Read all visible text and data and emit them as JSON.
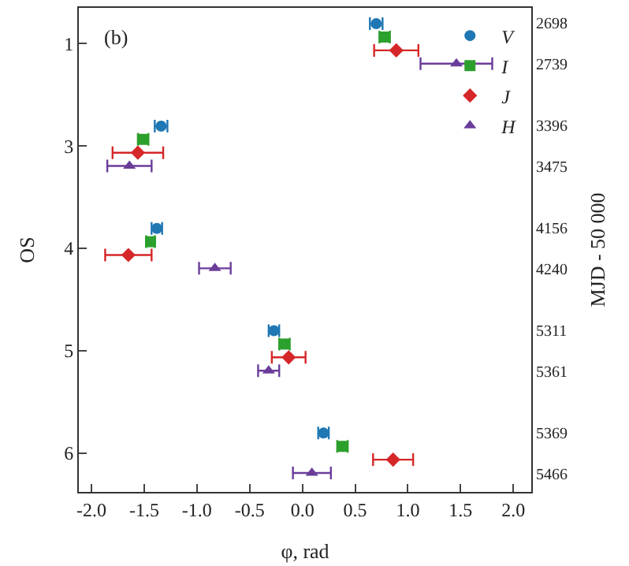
{
  "chart_data": {
    "type": "scatter",
    "orientation": "horizontal",
    "xlabel": "φ, rad",
    "ylabel": "OS",
    "y2label": "MJD - 50 000",
    "annotations": [
      "(b)"
    ],
    "xlim": [
      -2.12,
      2.17
    ],
    "xticks": [
      {
        "value": -2.0,
        "label": "-2.0"
      },
      {
        "value": -1.5,
        "label": "-1.5"
      },
      {
        "value": -1.0,
        "label": "-1.0"
      },
      {
        "value": -0.5,
        "label": "-0.5"
      },
      {
        "value": 0.0,
        "label": "0.0"
      },
      {
        "value": 0.5,
        "label": "0.5"
      },
      {
        "value": 1.0,
        "label": "1.0"
      },
      {
        "value": 1.5,
        "label": "1.5"
      },
      {
        "value": 2.0,
        "label": "2.0"
      }
    ],
    "categories": [
      "1",
      "3",
      "4",
      "5",
      "6"
    ],
    "y2_categories": [
      "2698\n2739",
      "3396\n3475",
      "4156\n4240",
      "5311\n5361",
      "5369\n5466"
    ],
    "legend": "top right",
    "series": [
      {
        "name": "V",
        "color": "#1f77b4",
        "marker": "circle",
        "values": [
          0.7,
          -1.34,
          -1.38,
          -0.27,
          0.2
        ],
        "errors": [
          0.06,
          0.06,
          0.05,
          0.05,
          0.05
        ]
      },
      {
        "name": "I",
        "color": "#2ca02c",
        "marker": "square",
        "values": [
          0.78,
          -1.51,
          -1.44,
          -0.17,
          0.38
        ],
        "errors": [
          0.05,
          0.05,
          0.04,
          0.05,
          0.05
        ]
      },
      {
        "name": "J",
        "color": "#d62728",
        "marker": "diamond",
        "values": [
          0.89,
          -1.56,
          -1.65,
          -0.13,
          0.86
        ],
        "errors": [
          0.21,
          0.24,
          0.22,
          0.16,
          0.19
        ]
      },
      {
        "name": "H",
        "color": "#6a3d9a",
        "marker": "triangle",
        "values": [
          1.46,
          -1.64,
          -0.83,
          -0.32,
          0.09
        ],
        "errors": [
          0.34,
          0.21,
          0.15,
          0.1,
          0.18
        ]
      }
    ]
  }
}
